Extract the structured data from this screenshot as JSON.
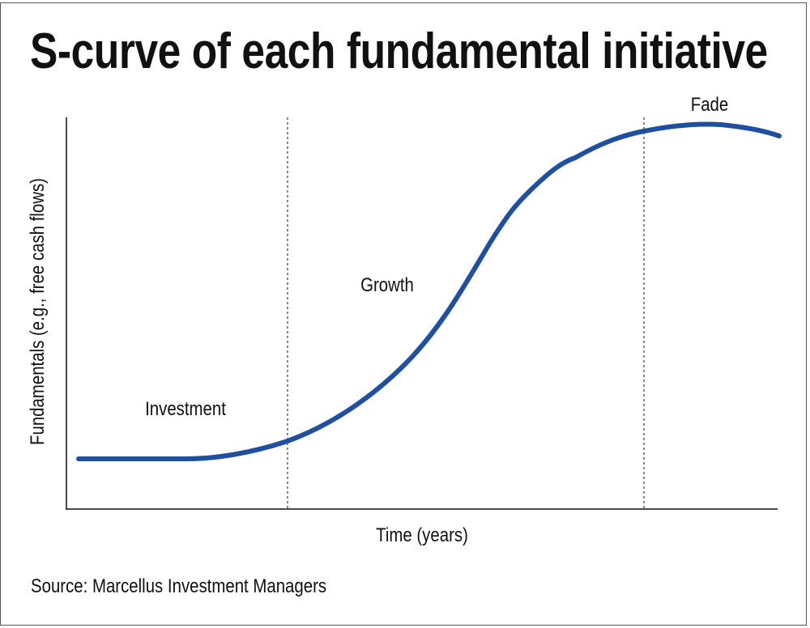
{
  "title": "S-curve of each fundamental initiative",
  "y_axis_label": "Fundamentals (e.g., free cash flows)",
  "x_axis_label": "Time (years)",
  "phases": [
    {
      "label": "Investment"
    },
    {
      "label": "Growth"
    },
    {
      "label": "Fade"
    }
  ],
  "source": "Source: Marcellus Investment Managers",
  "colors": {
    "curve": "#1f4fa0",
    "axes": "#111111"
  }
}
